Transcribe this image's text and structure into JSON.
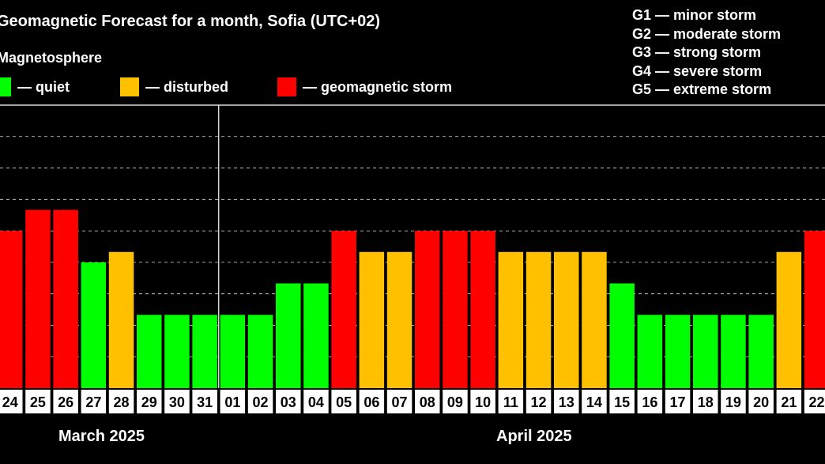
{
  "title": "Geomagnetic Forecast for a month, Sofia (UTC+02)",
  "subtitle": "Magnetosphere",
  "legend": [
    {
      "label": "— quiet",
      "color": "#00ff00"
    },
    {
      "label": "— disturbed",
      "color": "#ffc000"
    },
    {
      "label": "— geomagnetic storm",
      "color": "#ff0000"
    }
  ],
  "g_legend": [
    "G1 — minor storm",
    "G2 — moderate storm",
    "G3 — strong storm",
    "G4 — severe storm",
    "G5 — extreme storm"
  ],
  "months": [
    "March 2025",
    "April 2025"
  ],
  "chart_data": {
    "type": "bar",
    "categories": [
      "24",
      "25",
      "26",
      "27",
      "28",
      "29",
      "30",
      "31",
      "01",
      "02",
      "03",
      "04",
      "05",
      "06",
      "07",
      "08",
      "09",
      "10",
      "11",
      "12",
      "13",
      "14",
      "15",
      "16",
      "17",
      "18",
      "19",
      "20",
      "21",
      "22"
    ],
    "values": [
      5,
      5.67,
      5.67,
      4,
      4.33,
      2.33,
      2.33,
      2.33,
      2.33,
      2.33,
      3.33,
      3.33,
      5,
      4.33,
      4.33,
      5,
      5,
      5,
      4.33,
      4.33,
      4.33,
      4.33,
      3.33,
      2.33,
      2.33,
      2.33,
      2.33,
      2.33,
      4.33,
      5
    ],
    "status": [
      "storm",
      "storm",
      "storm",
      "quiet",
      "disturbed",
      "quiet",
      "quiet",
      "quiet",
      "quiet",
      "quiet",
      "quiet",
      "quiet",
      "storm",
      "disturbed",
      "disturbed",
      "storm",
      "storm",
      "storm",
      "disturbed",
      "disturbed",
      "disturbed",
      "disturbed",
      "quiet",
      "quiet",
      "quiet",
      "quiet",
      "quiet",
      "quiet",
      "disturbed",
      "storm"
    ],
    "colors": {
      "quiet": "#00ff00",
      "disturbed": "#ffc000",
      "storm": "#ff0000"
    },
    "ylim": [
      0,
      9
    ],
    "grid": true
  }
}
